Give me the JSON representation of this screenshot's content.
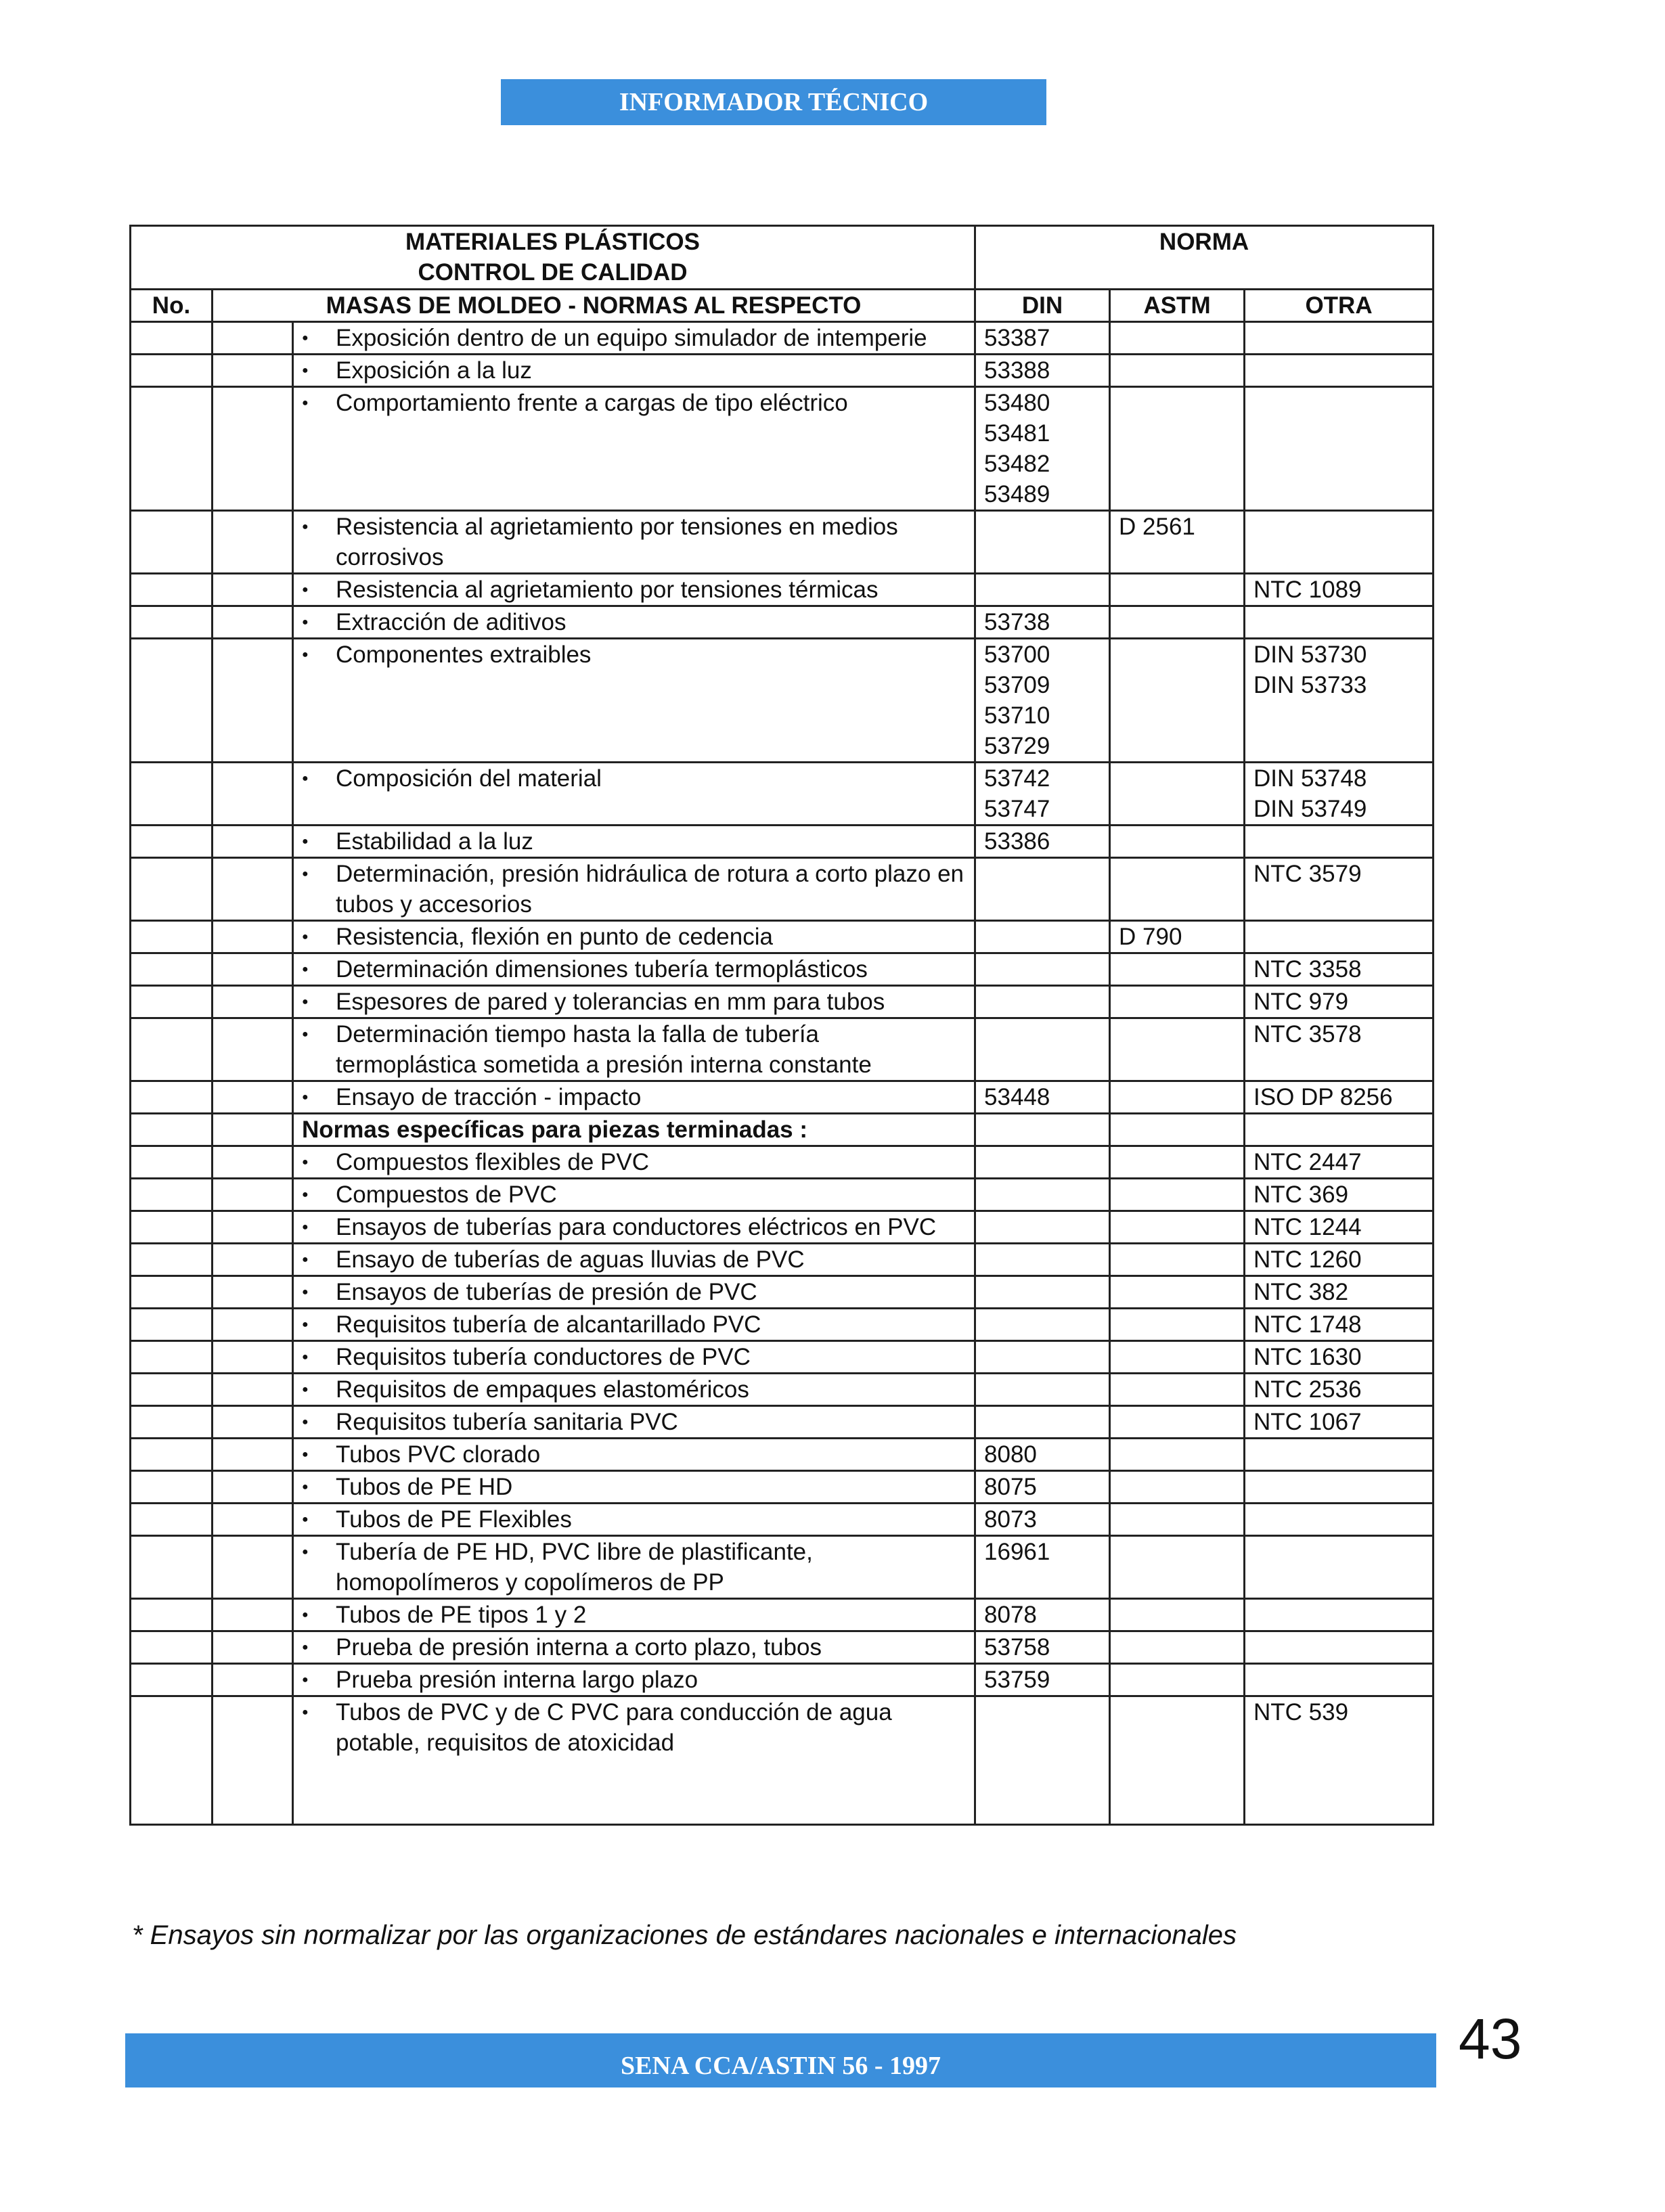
{
  "header": {
    "banner": "INFORMADOR TÉCNICO"
  },
  "table": {
    "title_line1": "MATERIALES PLÁSTICOS",
    "title_line2": "CONTROL DE CALIDAD",
    "norma": "NORMA",
    "col_no": "No.",
    "col_desc": "MASAS DE MOLDEO - NORMAS AL RESPECTO",
    "col_din": "DIN",
    "col_astm": "ASTM",
    "col_otra": "OTRA",
    "rows": [
      {
        "desc": "Exposición dentro de un equipo simulador de intemperie",
        "din": [
          "53387"
        ],
        "astm": [],
        "otra": []
      },
      {
        "desc": "Exposición a la luz",
        "din": [
          "53388"
        ],
        "astm": [],
        "otra": []
      },
      {
        "desc": "Comportamiento frente a cargas de tipo eléctrico",
        "din": [
          "53480",
          "53481",
          "53482",
          "53489"
        ],
        "astm": [],
        "otra": []
      },
      {
        "desc": "Resistencia al agrietamiento por tensiones en  medios corrosivos",
        "din": [],
        "astm": [
          "D 2561"
        ],
        "otra": []
      },
      {
        "desc": "Resistencia al agrietamiento por tensiones térmicas",
        "din": [],
        "astm": [],
        "otra": [
          "NTC 1089"
        ]
      },
      {
        "desc": "Extracción de aditivos",
        "din": [
          "53738"
        ],
        "astm": [],
        "otra": []
      },
      {
        "desc": "Componentes extraibles",
        "din": [
          "53700",
          "53709",
          "53710",
          "53729"
        ],
        "astm": [],
        "otra": [
          "DIN 53730",
          "DIN 53733"
        ]
      },
      {
        "desc": "Composición del material",
        "din": [
          "53742",
          "53747"
        ],
        "astm": [],
        "otra": [
          "DIN 53748",
          "DIN 53749"
        ]
      },
      {
        "desc": "Estabilidad a la luz",
        "din": [
          "53386"
        ],
        "astm": [],
        "otra": []
      },
      {
        "desc": "Determinación, presión hidráulica de rotura a corto plazo en tubos y accesorios",
        "din": [],
        "astm": [],
        "otra": [
          "NTC 3579"
        ]
      },
      {
        "desc": "Resistencia, flexión en punto de cedencia",
        "din": [],
        "astm": [
          "D 790"
        ],
        "otra": []
      },
      {
        "desc": "Determinación dimensiones tubería termoplásticos",
        "din": [],
        "astm": [],
        "otra": [
          "NTC 3358"
        ]
      },
      {
        "desc": "Espesores de pared y tolerancias en mm para tubos",
        "din": [],
        "astm": [],
        "otra": [
          "NTC 979"
        ]
      },
      {
        "desc": "Determinación tiempo hasta la falla de tubería termoplástica sometida a presión interna constante",
        "din": [],
        "astm": [],
        "otra": [
          "NTC 3578"
        ]
      },
      {
        "desc": "Ensayo de tracción - impacto",
        "din": [
          "53448"
        ],
        "astm": [],
        "otra": [
          "ISO DP 8256"
        ]
      },
      {
        "section": "Normas específicas para piezas terminadas :"
      },
      {
        "desc": "Compuestos flexibles de PVC",
        "din": [],
        "astm": [],
        "otra": [
          "NTC 2447"
        ]
      },
      {
        "desc": "Compuestos de PVC",
        "din": [],
        "astm": [],
        "otra": [
          "NTC 369"
        ]
      },
      {
        "desc": "Ensayos de tuberías para conductores eléctricos en PVC",
        "din": [],
        "astm": [],
        "otra": [
          "NTC 1244"
        ]
      },
      {
        "desc": "Ensayo de tuberías de aguas lluvias de PVC",
        "din": [],
        "astm": [],
        "otra": [
          "NTC 1260"
        ]
      },
      {
        "desc": "Ensayos de tuberías de presión de PVC",
        "din": [],
        "astm": [],
        "otra": [
          "NTC 382"
        ]
      },
      {
        "desc": "Requisitos tubería de alcantarillado PVC",
        "din": [],
        "astm": [],
        "otra": [
          "NTC 1748"
        ]
      },
      {
        "desc": "Requisitos tubería conductores de PVC",
        "din": [],
        "astm": [],
        "otra": [
          "NTC 1630"
        ]
      },
      {
        "desc": "Requisitos de empaques elastoméricos",
        "din": [],
        "astm": [],
        "otra": [
          "NTC 2536"
        ]
      },
      {
        "desc": "Requisitos tubería sanitaria PVC",
        "din": [],
        "astm": [],
        "otra": [
          "NTC 1067"
        ]
      },
      {
        "desc": "Tubos PVC clorado",
        "din": [
          "8080"
        ],
        "astm": [],
        "otra": []
      },
      {
        "desc": "Tubos de PE HD",
        "din": [
          "8075"
        ],
        "astm": [],
        "otra": []
      },
      {
        "desc": "Tubos de PE Flexibles",
        "din": [
          "8073"
        ],
        "astm": [],
        "otra": []
      },
      {
        "desc": "Tubería de PE HD, PVC libre de plastificante, homopolímeros y copolímeros de PP",
        "din": [
          "16961"
        ],
        "astm": [],
        "otra": []
      },
      {
        "desc": "Tubos de PE tipos 1 y 2",
        "din": [
          "8078"
        ],
        "astm": [],
        "otra": []
      },
      {
        "desc": "Prueba de presión interna a corto plazo, tubos",
        "din": [
          "53758"
        ],
        "astm": [],
        "otra": []
      },
      {
        "desc": "Prueba presión interna largo plazo",
        "din": [
          "53759"
        ],
        "astm": [],
        "otra": []
      },
      {
        "desc": "Tubos de PVC y de C PVC para conducción de agua potable, requisitos de atoxicidad",
        "din": [],
        "astm": [],
        "otra": [
          "NTC 539"
        ]
      }
    ]
  },
  "footnote": "* Ensayos sin normalizar por las organizaciones de estándares nacionales e internacionales",
  "footer": {
    "text": "SENA  CCA/ASTIN   56 - 1997",
    "page_number": "43"
  },
  "colors": {
    "banner": "#3b8fdc",
    "text": "#111111"
  }
}
